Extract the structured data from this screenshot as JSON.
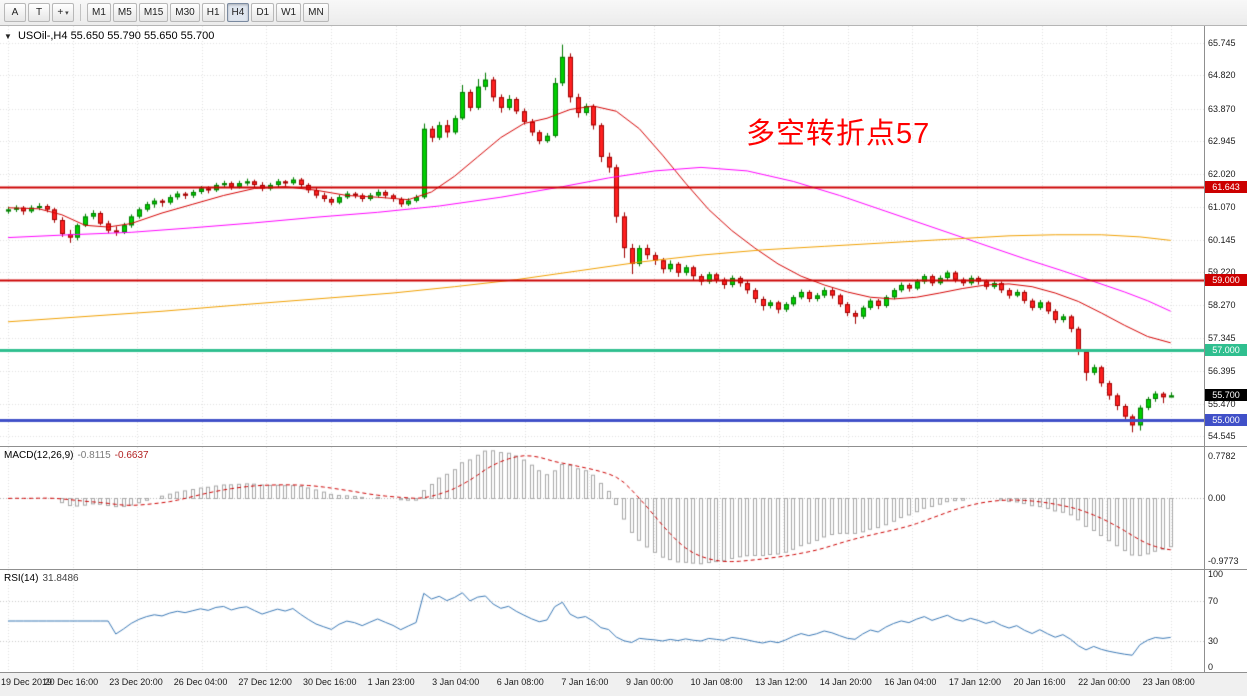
{
  "toolbar": {
    "tool_buttons": [
      {
        "label": "A"
      },
      {
        "label": "T"
      }
    ],
    "object_button": {
      "glyph": "+",
      "caret": "▾"
    },
    "timeframes": [
      "M1",
      "M5",
      "M15",
      "M30",
      "H1",
      "H4",
      "D1",
      "W1",
      "MN"
    ],
    "active_timeframe": "H4"
  },
  "header": {
    "collapse_glyph": "▼",
    "symbol": "USOil-,H4",
    "ohlc": "55.650 55.790 55.650 55.700"
  },
  "annotation": {
    "text": "多空转折点57",
    "color": "#ff0000"
  },
  "chart_data": {
    "type": "candlestick",
    "symbol": "USOil-",
    "timeframe": "H4",
    "grid_color": "#e0e0e0",
    "up_color": "#00ce00",
    "up_border": "#007a00",
    "down_color": "#ff2020",
    "down_border": "#a00000",
    "price_axis": {
      "min": 54.26,
      "max": 66.23,
      "ticks": [
        "65.745",
        "64.820",
        "63.870",
        "62.945",
        "62.020",
        "61.070",
        "60.145",
        "59.220",
        "58.270",
        "57.345",
        "56.395",
        "55.470",
        "54.545"
      ]
    },
    "levels": [
      {
        "price": 61.643,
        "label": "61.643",
        "color": "#cc0000",
        "line_width": 2
      },
      {
        "price": 59.0,
        "label": "59.000",
        "color": "#cc0000",
        "line_width": 2
      },
      {
        "price": 57.0,
        "label": "57.000",
        "color": "#2fbf8f",
        "line_width": 3
      },
      {
        "price": 55.0,
        "label": "55.000",
        "color": "#4050c8",
        "line_width": 3
      }
    ],
    "current_price": {
      "price": 55.7,
      "label": "55.700",
      "bg": "#000000",
      "text_color": "#ffffff"
    },
    "moving_averages": [
      {
        "name": "ma-fast-red",
        "color": "#d40000",
        "width": 1,
        "points": [
          [
            0,
            61.05
          ],
          [
            4,
            61.02
          ],
          [
            7,
            60.85
          ],
          [
            10,
            60.55
          ],
          [
            13,
            60.5
          ],
          [
            16,
            60.6
          ],
          [
            20,
            60.9
          ],
          [
            24,
            61.15
          ],
          [
            28,
            61.4
          ],
          [
            32,
            61.6
          ],
          [
            36,
            61.65
          ],
          [
            40,
            61.55
          ],
          [
            44,
            61.4
          ],
          [
            48,
            61.35
          ],
          [
            52,
            61.28
          ],
          [
            55,
            61.5
          ],
          [
            58,
            61.95
          ],
          [
            61,
            62.5
          ],
          [
            64,
            63.05
          ],
          [
            67,
            63.45
          ],
          [
            70,
            63.6
          ],
          [
            73,
            63.85
          ],
          [
            76,
            63.95
          ],
          [
            79,
            63.8
          ],
          [
            82,
            63.3
          ],
          [
            85,
            62.55
          ],
          [
            88,
            61.75
          ],
          [
            91,
            61.0
          ],
          [
            94,
            60.4
          ],
          [
            97,
            59.9
          ],
          [
            100,
            59.45
          ],
          [
            103,
            59.1
          ],
          [
            106,
            58.85
          ],
          [
            109,
            58.65
          ],
          [
            112,
            58.5
          ],
          [
            115,
            58.45
          ],
          [
            118,
            58.5
          ],
          [
            121,
            58.62
          ],
          [
            124,
            58.75
          ],
          [
            127,
            58.85
          ],
          [
            130,
            58.88
          ],
          [
            133,
            58.8
          ],
          [
            136,
            58.62
          ],
          [
            139,
            58.38
          ],
          [
            142,
            58.05
          ],
          [
            145,
            57.7
          ],
          [
            148,
            57.38
          ],
          [
            151,
            57.2
          ]
        ]
      },
      {
        "name": "ma-mid-magenta",
        "color": "#ff00ff",
        "width": 1,
        "points": [
          [
            0,
            60.2
          ],
          [
            8,
            60.28
          ],
          [
            16,
            60.35
          ],
          [
            24,
            60.48
          ],
          [
            32,
            60.62
          ],
          [
            40,
            60.78
          ],
          [
            48,
            60.92
          ],
          [
            56,
            61.1
          ],
          [
            64,
            61.35
          ],
          [
            72,
            61.65
          ],
          [
            78,
            61.9
          ],
          [
            84,
            62.1
          ],
          [
            90,
            62.2
          ],
          [
            96,
            62.1
          ],
          [
            102,
            61.8
          ],
          [
            108,
            61.4
          ],
          [
            114,
            60.95
          ],
          [
            120,
            60.5
          ],
          [
            126,
            60.05
          ],
          [
            132,
            59.6
          ],
          [
            137,
            59.25
          ],
          [
            141,
            58.95
          ],
          [
            145,
            58.65
          ],
          [
            148,
            58.4
          ],
          [
            151,
            58.1
          ]
        ]
      },
      {
        "name": "ma-slow-orange",
        "color": "#f0a000",
        "width": 1,
        "points": [
          [
            0,
            57.8
          ],
          [
            10,
            57.95
          ],
          [
            20,
            58.1
          ],
          [
            30,
            58.28
          ],
          [
            40,
            58.45
          ],
          [
            50,
            58.62
          ],
          [
            58,
            58.8
          ],
          [
            66,
            59.0
          ],
          [
            74,
            59.25
          ],
          [
            82,
            59.5
          ],
          [
            90,
            59.7
          ],
          [
            98,
            59.85
          ],
          [
            106,
            59.95
          ],
          [
            114,
            60.05
          ],
          [
            122,
            60.15
          ],
          [
            130,
            60.25
          ],
          [
            136,
            60.28
          ],
          [
            142,
            60.28
          ],
          [
            147,
            60.22
          ],
          [
            151,
            60.12
          ]
        ]
      }
    ],
    "candles": [
      [
        60.95,
        61.08,
        60.88,
        61
      ],
      [
        61,
        61.12,
        60.93,
        61.05
      ],
      [
        61.05,
        61.1,
        60.85,
        60.95
      ],
      [
        60.95,
        61.12,
        60.9,
        61.05
      ],
      [
        61.05,
        61.18,
        60.98,
        61.1
      ],
      [
        61.1,
        61.15,
        60.92,
        61
      ],
      [
        61,
        61.05,
        60.62,
        60.7
      ],
      [
        60.7,
        60.78,
        60.22,
        60.3
      ],
      [
        60.3,
        60.42,
        60.05,
        60.2
      ],
      [
        60.2,
        60.6,
        60.12,
        60.55
      ],
      [
        60.55,
        60.88,
        60.5,
        60.8
      ],
      [
        60.8,
        60.98,
        60.72,
        60.9
      ],
      [
        60.9,
        60.95,
        60.55,
        60.6
      ],
      [
        60.6,
        60.68,
        60.32,
        60.4
      ],
      [
        60.4,
        60.52,
        60.25,
        60.35
      ],
      [
        60.35,
        60.62,
        60.3,
        60.55
      ],
      [
        60.55,
        60.86,
        60.48,
        60.8
      ],
      [
        60.8,
        61.06,
        60.74,
        61
      ],
      [
        61,
        61.22,
        60.94,
        61.15
      ],
      [
        61.15,
        61.32,
        61.05,
        61.25
      ],
      [
        61.25,
        61.3,
        61.08,
        61.2
      ],
      [
        61.2,
        61.42,
        61.14,
        61.35
      ],
      [
        61.35,
        61.52,
        61.28,
        61.45
      ],
      [
        61.45,
        61.5,
        61.3,
        61.4
      ],
      [
        61.4,
        61.56,
        61.33,
        61.5
      ],
      [
        61.5,
        61.67,
        61.44,
        61.6
      ],
      [
        61.6,
        61.66,
        61.46,
        61.55
      ],
      [
        61.55,
        61.76,
        61.5,
        61.7
      ],
      [
        61.7,
        61.82,
        61.62,
        61.75
      ],
      [
        61.75,
        61.8,
        61.56,
        61.65
      ],
      [
        61.65,
        61.82,
        61.6,
        61.75
      ],
      [
        61.75,
        61.88,
        61.68,
        61.8
      ],
      [
        61.8,
        61.85,
        61.62,
        61.7
      ],
      [
        61.7,
        61.78,
        61.52,
        61.6
      ],
      [
        61.6,
        61.76,
        61.54,
        61.7
      ],
      [
        61.7,
        61.87,
        61.64,
        61.8
      ],
      [
        61.8,
        61.84,
        61.66,
        61.75
      ],
      [
        61.75,
        61.92,
        61.7,
        61.85
      ],
      [
        61.85,
        61.9,
        61.62,
        61.7
      ],
      [
        61.7,
        61.75,
        61.47,
        61.55
      ],
      [
        61.55,
        61.62,
        61.32,
        61.4
      ],
      [
        61.4,
        61.48,
        61.22,
        61.3
      ],
      [
        61.3,
        61.36,
        61.12,
        61.2
      ],
      [
        61.2,
        61.42,
        61.15,
        61.35
      ],
      [
        61.35,
        61.52,
        61.3,
        61.45
      ],
      [
        61.45,
        61.5,
        61.32,
        61.4
      ],
      [
        61.4,
        61.46,
        61.22,
        61.3
      ],
      [
        61.3,
        61.47,
        61.25,
        61.4
      ],
      [
        61.4,
        61.57,
        61.34,
        61.5
      ],
      [
        61.5,
        61.55,
        61.32,
        61.4
      ],
      [
        61.4,
        61.45,
        61.22,
        61.3
      ],
      [
        61.3,
        61.35,
        61.07,
        61.15
      ],
      [
        61.15,
        61.32,
        61.1,
        61.25
      ],
      [
        61.25,
        61.42,
        61.2,
        61.35
      ],
      [
        61.35,
        63.45,
        61.3,
        63.3
      ],
      [
        63.3,
        63.38,
        62.92,
        63.05
      ],
      [
        63.05,
        63.5,
        62.98,
        63.4
      ],
      [
        63.4,
        63.55,
        63.05,
        63.2
      ],
      [
        63.2,
        63.68,
        63.14,
        63.6
      ],
      [
        63.6,
        64.55,
        63.55,
        64.35
      ],
      [
        64.35,
        64.42,
        63.8,
        63.9
      ],
      [
        63.9,
        64.72,
        63.84,
        64.5
      ],
      [
        64.5,
        64.9,
        64.4,
        64.7
      ],
      [
        64.7,
        64.78,
        64.08,
        64.2
      ],
      [
        64.2,
        64.28,
        63.76,
        63.9
      ],
      [
        63.9,
        64.26,
        63.83,
        64.15
      ],
      [
        64.15,
        64.2,
        63.72,
        63.8
      ],
      [
        63.8,
        63.88,
        63.42,
        63.5
      ],
      [
        63.5,
        63.58,
        63.1,
        63.2
      ],
      [
        63.2,
        63.26,
        62.86,
        62.95
      ],
      [
        62.95,
        63.18,
        62.9,
        63.1
      ],
      [
        63.1,
        64.75,
        63.05,
        64.6
      ],
      [
        64.6,
        65.7,
        64.52,
        65.35
      ],
      [
        65.35,
        65.45,
        64.05,
        64.2
      ],
      [
        64.2,
        64.3,
        63.62,
        63.75
      ],
      [
        63.75,
        64.02,
        63.68,
        63.95
      ],
      [
        63.95,
        64,
        63.28,
        63.4
      ],
      [
        63.4,
        63.46,
        62.35,
        62.5
      ],
      [
        62.5,
        62.62,
        62.05,
        62.2
      ],
      [
        62.2,
        62.28,
        60.62,
        60.8
      ],
      [
        60.8,
        60.92,
        59.62,
        59.9
      ],
      [
        59.9,
        60.02,
        59.16,
        59.45
      ],
      [
        59.45,
        59.98,
        59.38,
        59.9
      ],
      [
        59.9,
        60,
        59.58,
        59.7
      ],
      [
        59.7,
        59.78,
        59.42,
        59.55
      ],
      [
        59.55,
        59.62,
        59.18,
        59.3
      ],
      [
        59.3,
        59.55,
        59.22,
        59.45
      ],
      [
        59.45,
        59.5,
        59.08,
        59.2
      ],
      [
        59.2,
        59.42,
        59.12,
        59.35
      ],
      [
        59.35,
        59.4,
        58.98,
        59.1
      ],
      [
        59.1,
        59.16,
        58.84,
        58.95
      ],
      [
        58.95,
        59.22,
        58.88,
        59.15
      ],
      [
        59.15,
        59.2,
        58.9,
        59
      ],
      [
        59,
        59.06,
        58.74,
        58.85
      ],
      [
        58.85,
        59.12,
        58.78,
        59.05
      ],
      [
        59.05,
        59.1,
        58.8,
        58.9
      ],
      [
        58.9,
        58.96,
        58.6,
        58.7
      ],
      [
        58.7,
        58.76,
        58.34,
        58.45
      ],
      [
        58.45,
        58.52,
        58.12,
        58.25
      ],
      [
        58.25,
        58.42,
        58.18,
        58.35
      ],
      [
        58.35,
        58.4,
        58.04,
        58.15
      ],
      [
        58.15,
        58.36,
        58.08,
        58.3
      ],
      [
        58.3,
        58.56,
        58.24,
        58.5
      ],
      [
        58.5,
        58.72,
        58.44,
        58.65
      ],
      [
        58.65,
        58.7,
        58.36,
        58.45
      ],
      [
        58.45,
        58.62,
        58.38,
        58.55
      ],
      [
        58.55,
        58.78,
        58.48,
        58.7
      ],
      [
        58.7,
        58.76,
        58.46,
        58.55
      ],
      [
        58.55,
        58.6,
        58.22,
        58.3
      ],
      [
        58.3,
        58.36,
        57.96,
        58.05
      ],
      [
        58.05,
        58.12,
        57.74,
        57.95
      ],
      [
        57.95,
        58.26,
        57.88,
        58.2
      ],
      [
        58.2,
        58.46,
        58.14,
        58.4
      ],
      [
        58.4,
        58.45,
        58.16,
        58.25
      ],
      [
        58.25,
        58.56,
        58.2,
        58.5
      ],
      [
        58.5,
        58.76,
        58.44,
        58.7
      ],
      [
        58.7,
        58.92,
        58.64,
        58.85
      ],
      [
        58.85,
        58.9,
        58.66,
        58.75
      ],
      [
        58.75,
        59.02,
        58.7,
        58.95
      ],
      [
        58.95,
        59.16,
        58.88,
        59.1
      ],
      [
        59.1,
        59.15,
        58.82,
        58.9
      ],
      [
        58.9,
        59.12,
        58.85,
        59.05
      ],
      [
        59.05,
        59.26,
        58.98,
        59.2
      ],
      [
        59.2,
        59.25,
        58.92,
        59
      ],
      [
        59,
        59.06,
        58.82,
        58.9
      ],
      [
        58.9,
        59.12,
        58.84,
        59.05
      ],
      [
        59.05,
        59.1,
        58.86,
        58.95
      ],
      [
        58.95,
        59,
        58.72,
        58.8
      ],
      [
        58.8,
        58.96,
        58.74,
        58.9
      ],
      [
        58.9,
        58.95,
        58.62,
        58.7
      ],
      [
        58.7,
        58.76,
        58.46,
        58.55
      ],
      [
        58.55,
        58.72,
        58.5,
        58.65
      ],
      [
        58.65,
        58.7,
        58.32,
        58.4
      ],
      [
        58.4,
        58.46,
        58.12,
        58.2
      ],
      [
        58.2,
        58.42,
        58.14,
        58.35
      ],
      [
        58.35,
        58.4,
        58.02,
        58.1
      ],
      [
        58.1,
        58.16,
        57.76,
        57.85
      ],
      [
        57.85,
        58.02,
        57.78,
        57.95
      ],
      [
        57.95,
        58,
        57.5,
        57.6
      ],
      [
        57.6,
        57.66,
        56.85,
        56.95
      ],
      [
        56.95,
        57.02,
        56.12,
        56.35
      ],
      [
        56.35,
        56.58,
        56.28,
        56.5
      ],
      [
        56.5,
        56.55,
        55.95,
        56.05
      ],
      [
        56.05,
        56.12,
        55.58,
        55.7
      ],
      [
        55.7,
        55.76,
        55.28,
        55.4
      ],
      [
        55.4,
        55.46,
        54.98,
        55.1
      ],
      [
        55.1,
        55.16,
        54.65,
        54.85
      ],
      [
        54.85,
        55.42,
        54.7,
        55.35
      ],
      [
        55.35,
        55.66,
        55.28,
        55.6
      ],
      [
        55.6,
        55.82,
        55.52,
        55.75
      ],
      [
        55.75,
        55.8,
        55.48,
        55.65
      ],
      [
        55.65,
        55.79,
        55.65,
        55.7
      ]
    ]
  },
  "macd": {
    "label": "MACD(12,26,9)",
    "value_main": "-0.8115",
    "value_signal": "-0.6637",
    "scale_top": "0.7782",
    "scale_zero": "0.00",
    "scale_bottom": "-0.9773",
    "bar_color": "#a8a8a8",
    "signal_color": "#cc0000",
    "params": {
      "fast": 12,
      "slow": 26,
      "signal": 9
    }
  },
  "rsi": {
    "label": "RSI(14)",
    "value": "31.8486",
    "period": 14,
    "scale_top": "100",
    "level_upper": "70",
    "level_lower": "30",
    "scale_bottom": "0",
    "line_color": "#3a78b5",
    "level_color": "#c8c8c8"
  },
  "time_axis": {
    "labels": [
      "19 Dec 2019",
      "20 Dec 16:00",
      "23 Dec 20:00",
      "26 Dec 04:00",
      "27 Dec 12:00",
      "30 Dec 16:00",
      "1 Jan 23:00",
      "3 Jan 04:00",
      "6 Jan 08:00",
      "7 Jan 16:00",
      "9 Jan 00:00",
      "10 Jan 08:00",
      "13 Jan 12:00",
      "14 Jan 20:00",
      "16 Jan 04:00",
      "17 Jan 12:00",
      "20 Jan 16:00",
      "22 Jan 00:00",
      "23 Jan 08:00"
    ]
  }
}
